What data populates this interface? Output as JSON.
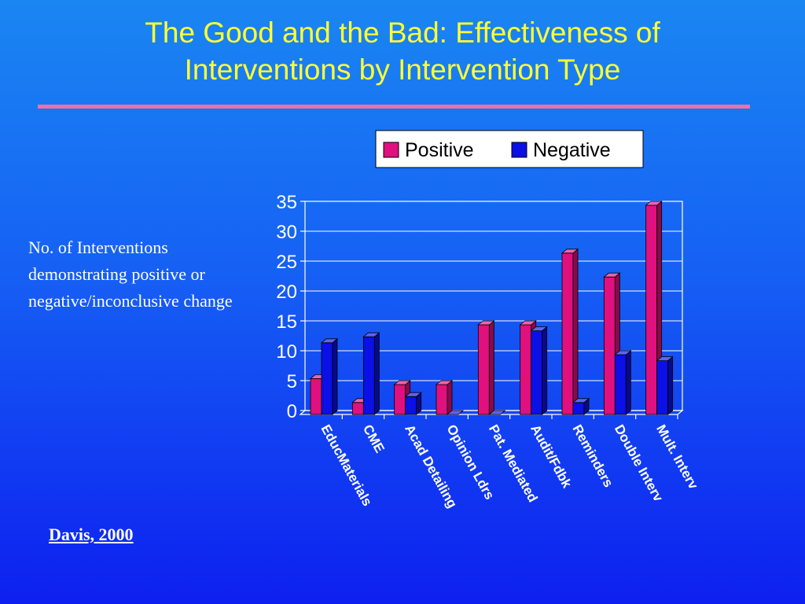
{
  "slide": {
    "title": "The Good and the Bad: Effectiveness of Interventions by Intervention Type",
    "title_line1": "The Good and the Bad: Effectiveness of",
    "title_line2": "Interventions by Intervention Type",
    "side_note": "No. of Interventions demonstrating positive or negative/inconclusive change",
    "source": "Davis, 2000"
  },
  "colors": {
    "title": "#ffff33",
    "rule": "#f06fa7",
    "positive": "#e0107f",
    "negative": "#0a10e6"
  },
  "chart_data": {
    "type": "bar",
    "title": "",
    "xlabel": "",
    "ylabel": "",
    "ylim": [
      0,
      35
    ],
    "yticks": [
      0,
      5,
      10,
      15,
      20,
      25,
      30,
      35
    ],
    "grid": true,
    "legend": "top",
    "categories": [
      "EducMaterials",
      "CME",
      "Acad Detailing",
      "Opinion Ldrs",
      "Pat. Mediated",
      "Audit/Fdbk",
      "Reminders",
      "Double Interv",
      "Mult. Interv"
    ],
    "series": [
      {
        "name": "Positive",
        "values": [
          6,
          2,
          5,
          5,
          15,
          15,
          27,
          23,
          35
        ]
      },
      {
        "name": "Negative",
        "values": [
          12,
          13,
          3,
          0,
          0,
          14,
          2,
          10,
          9
        ]
      }
    ]
  }
}
